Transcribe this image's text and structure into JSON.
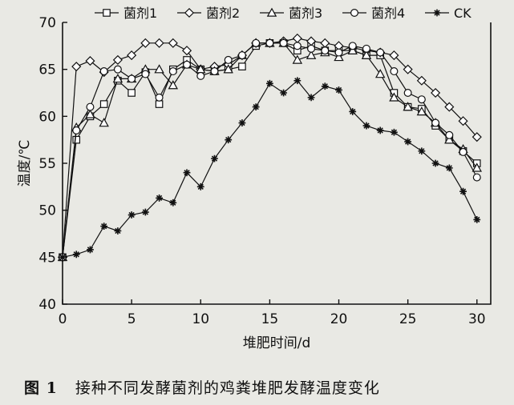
{
  "chart_data": {
    "type": "line",
    "xlabel": "堆肥时间/d",
    "ylabel": "温度/℃",
    "xlim": [
      0,
      31
    ],
    "ylim": [
      40,
      70
    ],
    "xticks": [
      0,
      5,
      10,
      15,
      20,
      25,
      30
    ],
    "yticks": [
      40,
      45,
      50,
      55,
      60,
      65,
      70
    ],
    "grid": false,
    "legend_position": "top",
    "series": [
      {
        "name": "菌剂1",
        "marker": "square",
        "x": [
          0,
          1,
          2,
          3,
          4,
          5,
          6,
          7,
          8,
          9,
          10,
          11,
          12,
          13,
          14,
          15,
          16,
          17,
          18,
          19,
          20,
          21,
          22,
          23,
          24,
          25,
          26,
          27,
          28,
          29,
          30
        ],
        "y": [
          45,
          57.5,
          60,
          61.3,
          63.8,
          62.5,
          64.7,
          61.3,
          65,
          66,
          65,
          64.8,
          65,
          65.3,
          67.5,
          67.8,
          67.8,
          67,
          67.5,
          67,
          67,
          67,
          66.5,
          66.5,
          62.5,
          61,
          60.8,
          59,
          57.5,
          56.3,
          55
        ]
      },
      {
        "name": "菌剂2",
        "marker": "diamond",
        "x": [
          0,
          1,
          2,
          3,
          4,
          5,
          6,
          7,
          8,
          9,
          10,
          11,
          12,
          13,
          14,
          15,
          16,
          17,
          18,
          19,
          20,
          21,
          22,
          23,
          24,
          25,
          26,
          27,
          28,
          29,
          30
        ],
        "y": [
          45,
          65.3,
          65.9,
          64.7,
          66,
          66.5,
          67.8,
          67.8,
          67.8,
          67,
          65,
          65.3,
          65.5,
          66.5,
          67.8,
          67.8,
          68,
          68.3,
          68,
          67.8,
          67.5,
          67.3,
          67,
          66.8,
          66.5,
          65,
          63.8,
          62.5,
          61,
          59.5,
          57.8
        ]
      },
      {
        "name": "菌剂3",
        "marker": "triangle",
        "x": [
          0,
          1,
          2,
          3,
          4,
          5,
          6,
          7,
          8,
          9,
          10,
          11,
          12,
          13,
          14,
          15,
          16,
          17,
          18,
          19,
          20,
          21,
          22,
          23,
          24,
          25,
          26,
          27,
          28,
          29,
          30
        ],
        "y": [
          45,
          58.8,
          60.2,
          59.3,
          64,
          64,
          65,
          65,
          63.3,
          65.5,
          65,
          64.8,
          65,
          66.5,
          67.8,
          67.8,
          67.8,
          66,
          66.5,
          66.8,
          66.3,
          67,
          66.5,
          64.5,
          62,
          61,
          60.5,
          59.3,
          57.5,
          56.5,
          54.5
        ]
      },
      {
        "name": "菌剂4",
        "marker": "circle",
        "x": [
          0,
          1,
          2,
          3,
          4,
          5,
          6,
          7,
          8,
          9,
          10,
          11,
          12,
          13,
          14,
          15,
          16,
          17,
          18,
          19,
          20,
          21,
          22,
          23,
          24,
          25,
          26,
          27,
          28,
          29,
          30
        ],
        "y": [
          45,
          58.5,
          61,
          64.8,
          65,
          64,
          64.5,
          62,
          64.8,
          65.5,
          64.3,
          64.8,
          66,
          66.5,
          67.8,
          67.8,
          67.8,
          67.5,
          67.2,
          67,
          66.8,
          67.5,
          67.2,
          66.8,
          64.8,
          62.5,
          61.8,
          59.3,
          58,
          56.2,
          53.5
        ]
      },
      {
        "name": "CK",
        "marker": "star",
        "x": [
          0,
          1,
          2,
          3,
          4,
          5,
          6,
          7,
          8,
          9,
          10,
          11,
          12,
          13,
          14,
          15,
          16,
          17,
          18,
          19,
          20,
          21,
          22,
          23,
          24,
          25,
          26,
          27,
          28,
          29,
          30
        ],
        "y": [
          45,
          45.3,
          45.8,
          48.3,
          47.8,
          49.5,
          49.8,
          51.3,
          50.8,
          54,
          52.5,
          55.5,
          57.5,
          59.3,
          61,
          63.5,
          62.5,
          63.8,
          62,
          63.2,
          62.8,
          60.5,
          59,
          58.5,
          58.3,
          57.3,
          56.3,
          55,
          54.5,
          52,
          49
        ]
      }
    ]
  },
  "caption": {
    "figure_label": "图 1",
    "text": "接种不同发酵菌剂的鸡粪堆肥发酵温度变化"
  }
}
